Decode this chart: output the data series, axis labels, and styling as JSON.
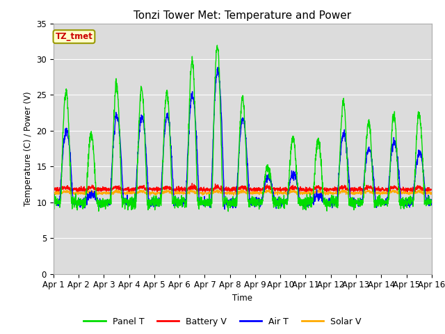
{
  "title": "Tonzi Tower Met: Temperature and Power",
  "xlabel": "Time",
  "ylabel": "Temperature (C) / Power (V)",
  "annotation": "TZ_tmet",
  "ylim": [
    0,
    35
  ],
  "yticks": [
    0,
    5,
    10,
    15,
    20,
    25,
    30,
    35
  ],
  "x_labels": [
    "Apr 1",
    "Apr 2",
    "Apr 3",
    "Apr 4",
    "Apr 5",
    "Apr 6",
    "Apr 7",
    "Apr 8",
    "Apr 9",
    "Apr 10",
    "Apr 11",
    "Apr 12",
    "Apr 13",
    "Apr 14",
    "Apr 15",
    "Apr 16"
  ],
  "series_colors": {
    "Panel T": "#00dd00",
    "Battery V": "#ff0000",
    "Air T": "#0000ff",
    "Solar V": "#ffaa00"
  },
  "plot_background": "#dcdcdc",
  "title_fontsize": 11,
  "axis_fontsize": 8.5,
  "legend_fontsize": 9,
  "panel_day_peaks": [
    25.5,
    19.5,
    26.5,
    26.0,
    25.5,
    30.0,
    32.0,
    24.5,
    15.0,
    19.0,
    18.5,
    24.0,
    21.0,
    22.0,
    22.5
  ],
  "air_day_peaks": [
    20.0,
    11.0,
    22.0,
    22.0,
    22.0,
    25.0,
    28.5,
    21.5,
    13.5,
    14.0,
    11.0,
    19.5,
    17.5,
    18.5,
    17.0
  ],
  "base_night": 10.0,
  "battery_base": 11.8,
  "solar_base": 11.3
}
